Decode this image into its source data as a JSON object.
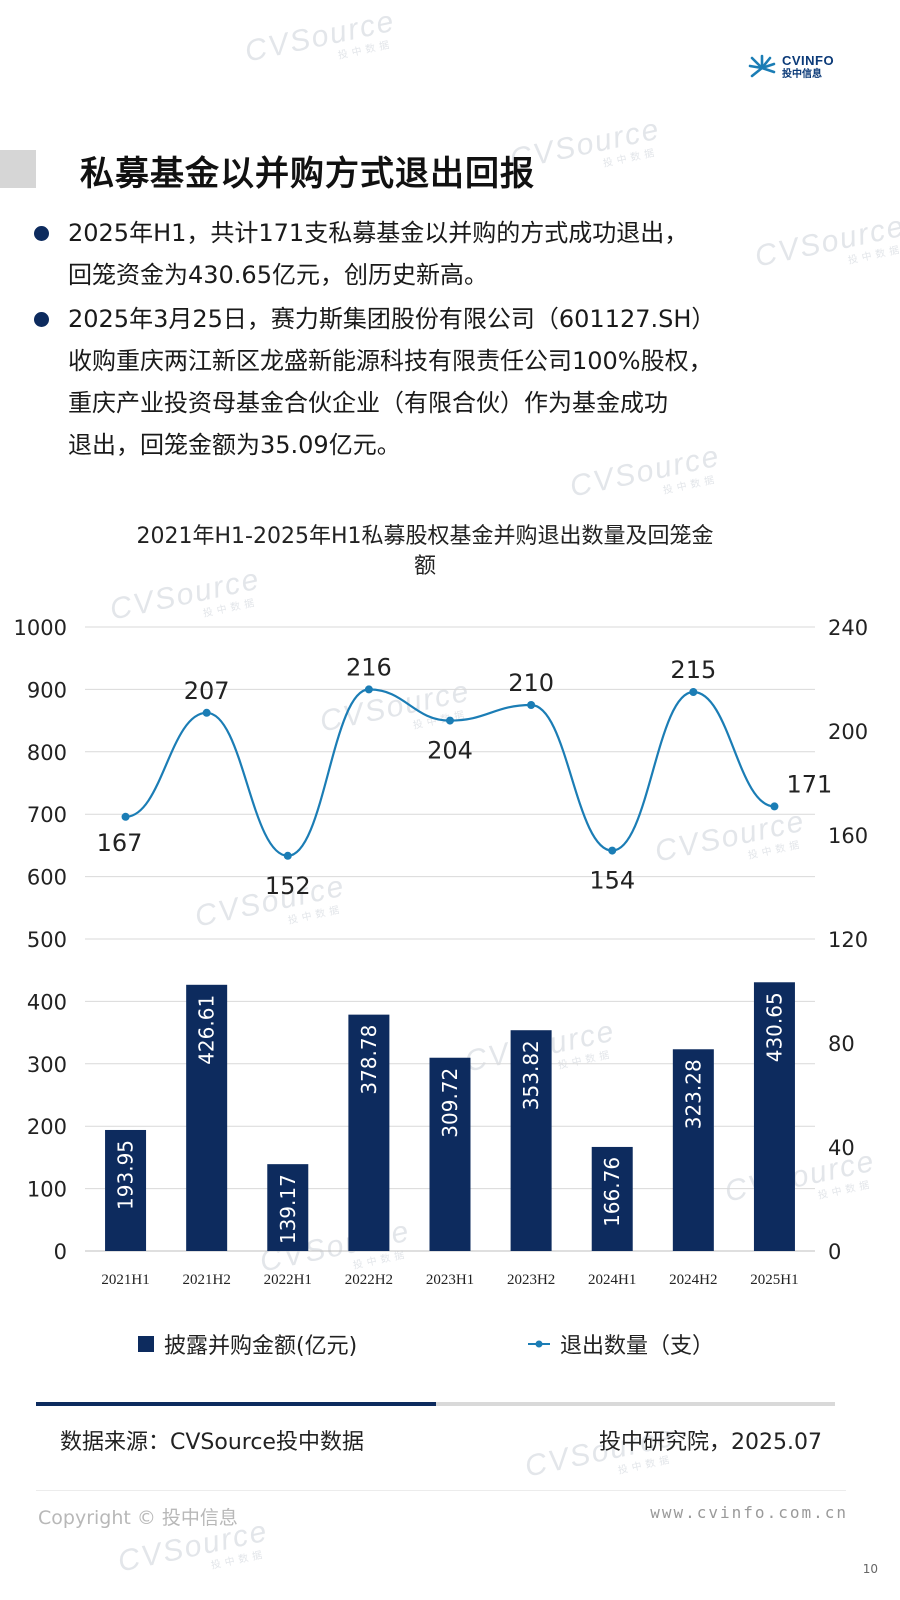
{
  "watermark": {
    "text": "CVSource",
    "sub": "投中数据"
  },
  "logo": {
    "en": "CVINFO",
    "cn": "投中信息"
  },
  "page_title": "私募基金以并购方式退出回报",
  "bullets": [
    {
      "line1": "2025年H1，共计171支私募基金以并购的方式成功退出，",
      "line2": "回笼资金为430.65亿元，创历史新高。"
    },
    {
      "line1": "2025年3月25日，赛力斯集团股份有限公司（601127.SH）",
      "line2": "收购重庆两江新区龙盛新能源科技有限责任公司100%股权，",
      "line3": "重庆产业投资母基金合伙企业（有限合伙）作为基金成功",
      "line4": "退出，回笼金额为35.09亿元。"
    }
  ],
  "chart_data": {
    "type": "bar",
    "title_line1": "2021年H1-2025年H1私募股权基金并购退出数量及回笼金",
    "title_line2": "额",
    "categories": [
      "2021H1",
      "2021H2",
      "2022H1",
      "2022H2",
      "2023H1",
      "2023H2",
      "2024H1",
      "2024H2",
      "2025H1"
    ],
    "series": [
      {
        "name": "披露并购金额(亿元)",
        "type": "bar",
        "axis": "left",
        "values": [
          193.95,
          426.61,
          139.17,
          378.78,
          309.72,
          353.82,
          166.76,
          323.28,
          430.65
        ],
        "labels": [
          "193.95",
          "426.61",
          "139.17",
          "378.78",
          "309.72",
          "353.82",
          "166.76",
          "323.28",
          "430.65"
        ]
      },
      {
        "name": "退出数量（支）",
        "type": "line",
        "axis": "right",
        "values": [
          167,
          207,
          152,
          216,
          204,
          210,
          154,
          215,
          171
        ]
      }
    ],
    "y_left": {
      "min": 0,
      "max": 1000,
      "ticks": [
        0,
        100,
        200,
        300,
        400,
        500,
        600,
        700,
        800,
        900,
        1000
      ]
    },
    "y_right": {
      "min": 0,
      "max": 240,
      "ticks": [
        0,
        40,
        80,
        120,
        160,
        200,
        240
      ]
    },
    "grid": true,
    "legend_position": "bottom",
    "colors": {
      "bar": "#0d2b5e",
      "line": "#1b7db5",
      "grid": "#d9d9d9"
    }
  },
  "legend": {
    "bar": "披露并购金额(亿元)",
    "line": "退出数量（支）"
  },
  "source_left": "数据来源：CVSource投中数据",
  "source_right": "投中研究院，2025.07",
  "copyright": "Copyright © 投中信息",
  "site": "www.cvinfo.com.cn",
  "page_number": "10"
}
